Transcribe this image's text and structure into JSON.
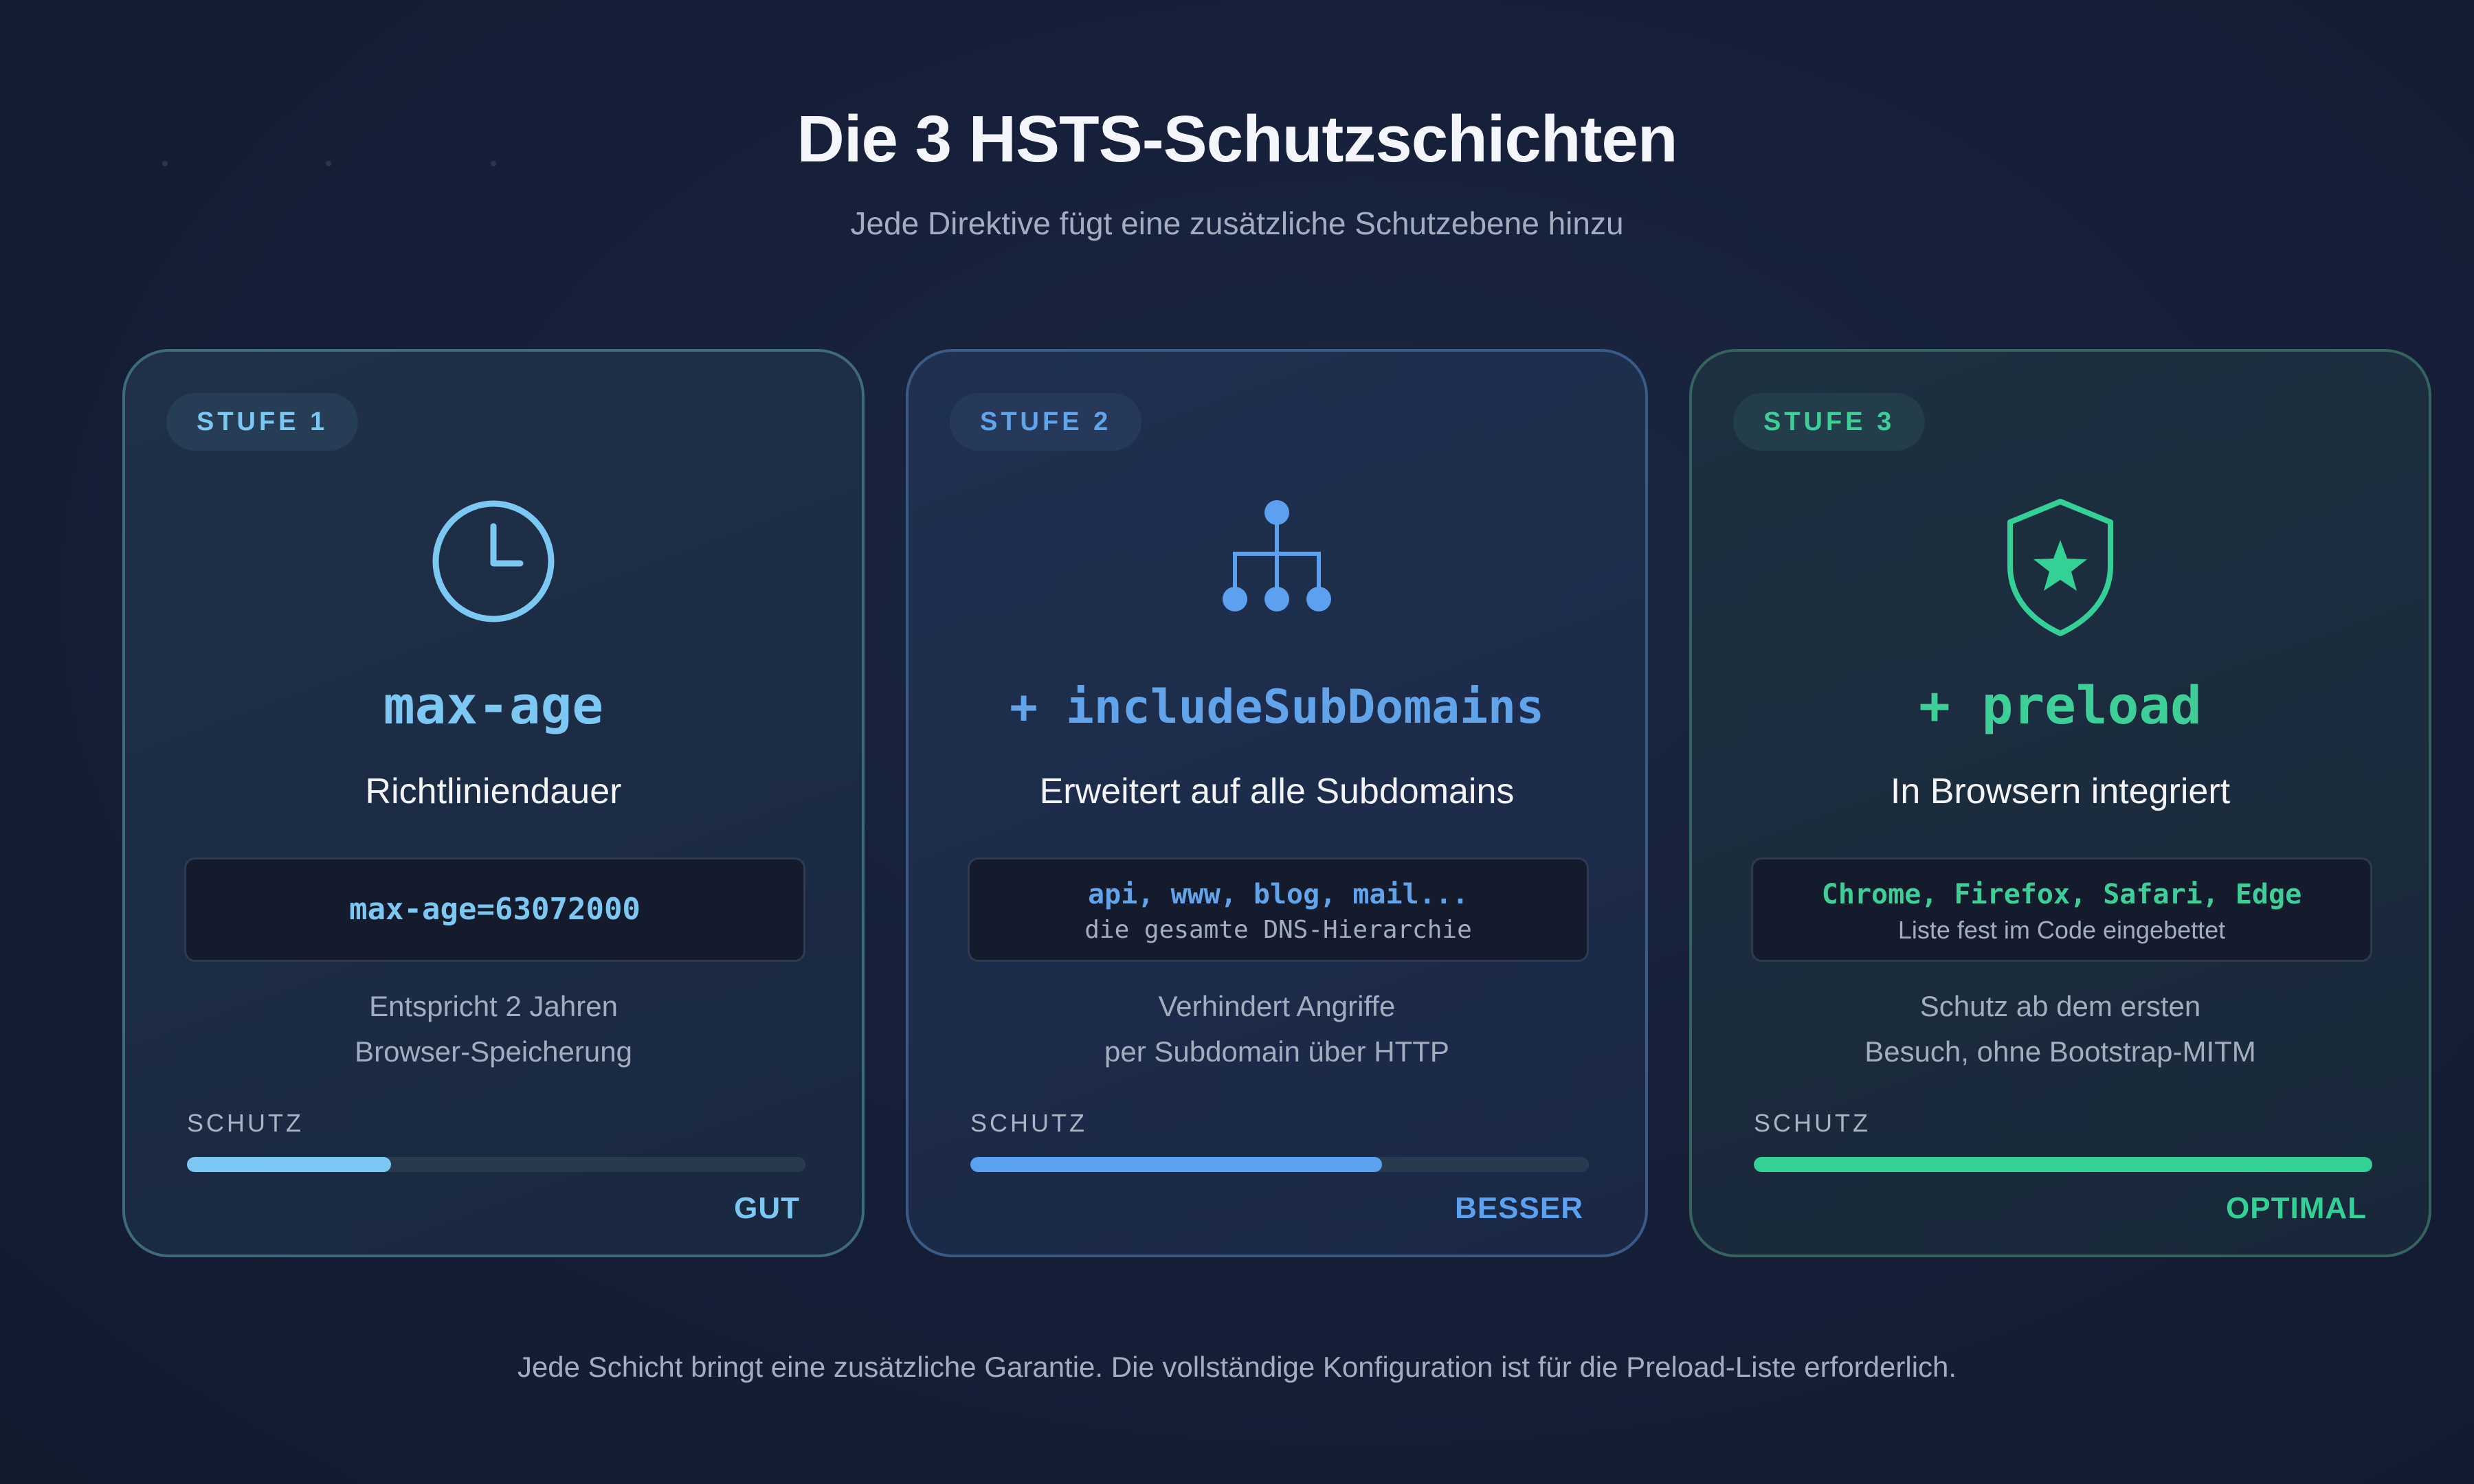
{
  "header": {
    "title": "Die 3 HSTS-Schutzschichten",
    "subtitle": "Jede Direktive fügt eine zusätzliche Schutzebene hinzu"
  },
  "cards": [
    {
      "badge": "STUFE 1",
      "icon": "clock-icon",
      "directive": "max-age",
      "heading": "Richtliniendauer",
      "code": "max-age=63072000",
      "code_note": "",
      "desc_line1": "Entspricht 2 Jahren",
      "desc_line2": "Browser-Speicherung",
      "protection_label": "SCHUTZ",
      "protection_fraction": 0.33,
      "protection_level": "GUT",
      "accent": "#7cc8f2"
    },
    {
      "badge": "STUFE 2",
      "icon": "hierarchy-icon",
      "directive": "+ includeSubDomains",
      "heading": "Erweitert auf alle Subdomains",
      "code": "api, www, blog, mail...",
      "code_note": "die gesamte DNS-Hierarchie",
      "desc_line1": "Verhindert Angriffe",
      "desc_line2": "per Subdomain über HTTP",
      "protection_label": "SCHUTZ",
      "protection_fraction": 0.665,
      "protection_level": "BESSER",
      "accent": "#5ba1f0"
    },
    {
      "badge": "STUFE 3",
      "icon": "shield-star-icon",
      "directive": "+ preload",
      "heading": "In Browsern integriert",
      "code": "Chrome, Firefox, Safari, Edge",
      "code_note": "Liste fest im Code eingebettet",
      "desc_line1": "Schutz ab dem ersten",
      "desc_line2": "Besuch, ohne Bootstrap-MITM",
      "protection_label": "SCHUTZ",
      "protection_fraction": 1.0,
      "protection_level": "OPTIMAL",
      "accent": "#34d196"
    }
  ],
  "footer": {
    "text": "Jede Schicht bringt eine zusätzliche Garantie. Die vollständige Konfiguration ist für die Preload-Liste erforderlich."
  }
}
